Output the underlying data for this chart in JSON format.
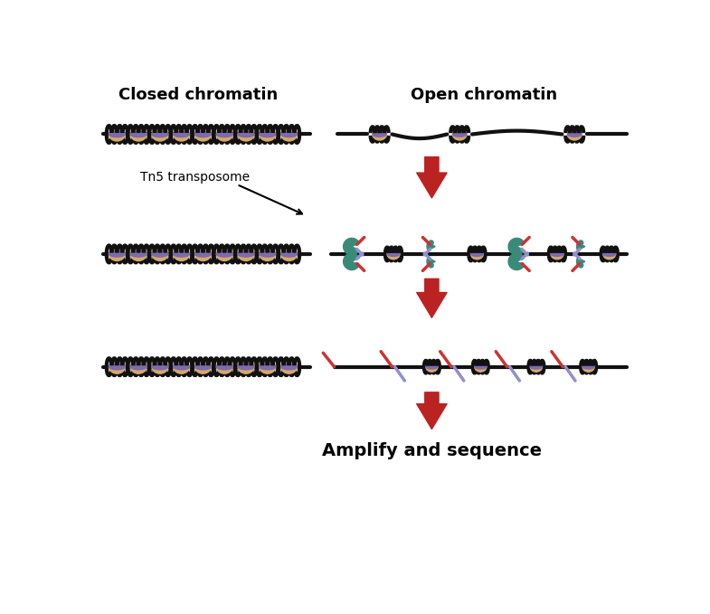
{
  "closed_chromatin_label": "Closed chromatin",
  "open_chromatin_label": "Open chromatin",
  "amplify_label": "Amplify and sequence",
  "tn5_label": "Tn5 transposome",
  "bg_color": "#ffffff",
  "dna_color": "#111111",
  "nucleosome_body_color": "#d4a96a",
  "nucleosome_wrap_color": "#7b68b0",
  "tn5_color": "#3a8a7a",
  "adapter_red_color": "#cc3333",
  "adapter_purple_color": "#9090cc",
  "arrow_color": "#bb2222",
  "label_fontsize": 13,
  "amplify_fontsize": 14,
  "tn5_fontsize": 10
}
